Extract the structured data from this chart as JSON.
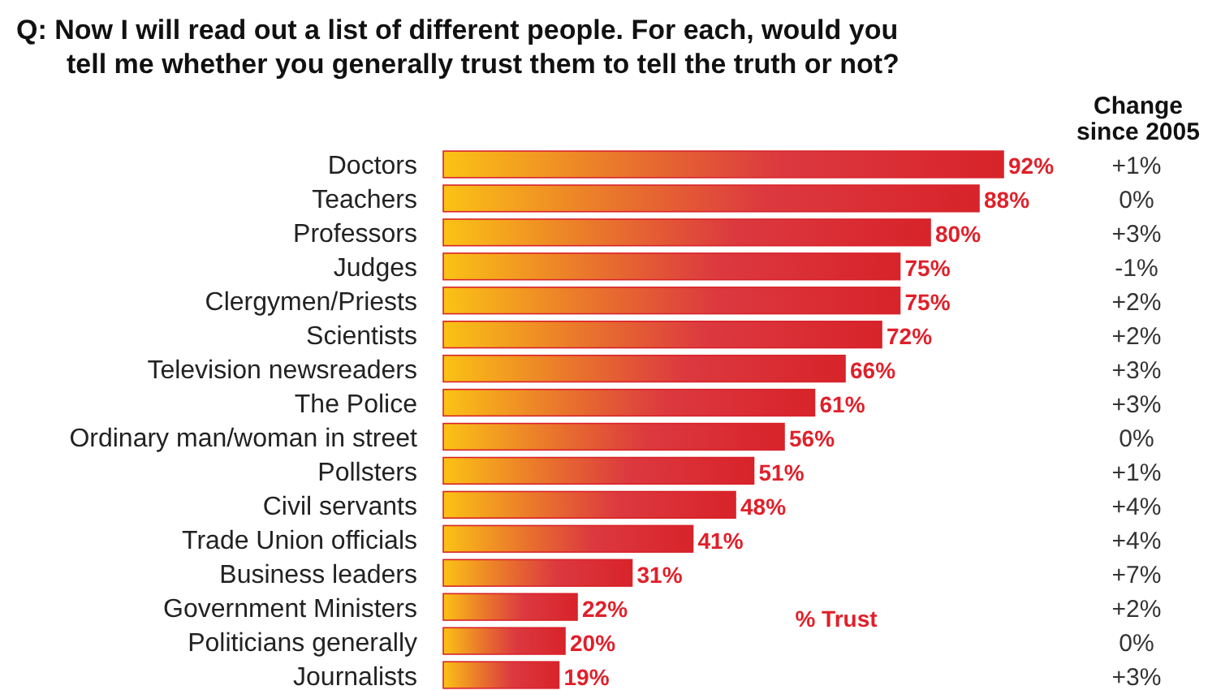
{
  "chart_data": {
    "type": "bar",
    "orientation": "horizontal",
    "title": "Q: Now I will read out a list of different people. For each, would you tell me whether you generally trust them to tell the truth or not?",
    "xlabel": "% Trust",
    "categories": [
      "Doctors",
      "Teachers",
      "Professors",
      "Judges",
      "Clergymen/Priests",
      "Scientists",
      "Television newsreaders",
      "The Police",
      "Ordinary man/woman in street",
      "Pollsters",
      "Civil servants",
      "Trade Union officials",
      "Business leaders",
      "Government Ministers",
      "Politicians generally",
      "Journalists"
    ],
    "series": [
      {
        "color": "#d8232a",
        "values": [
          92,
          88,
          80,
          75,
          75,
          72,
          66,
          61,
          56,
          51,
          48,
          41,
          31,
          22,
          20,
          19
        ],
        "value_labels": [
          "92%",
          "88%",
          "80%",
          "75%",
          "75%",
          "72%",
          "66%",
          "61%",
          "56%",
          "51%",
          "48%",
          "41%",
          "31%",
          "22%",
          "20%",
          "19%"
        ]
      }
    ],
    "tick_labels": "y",
    "annotations": [
      "Change since 2005",
      "+1%",
      "0%",
      "+3%",
      "-1%",
      "+2%",
      "+2%",
      "+3%",
      "+3%",
      "0%",
      "+1%",
      "+4%",
      "+4%",
      "+7%",
      "+2%",
      "0%",
      "+3%"
    ]
  }
}
